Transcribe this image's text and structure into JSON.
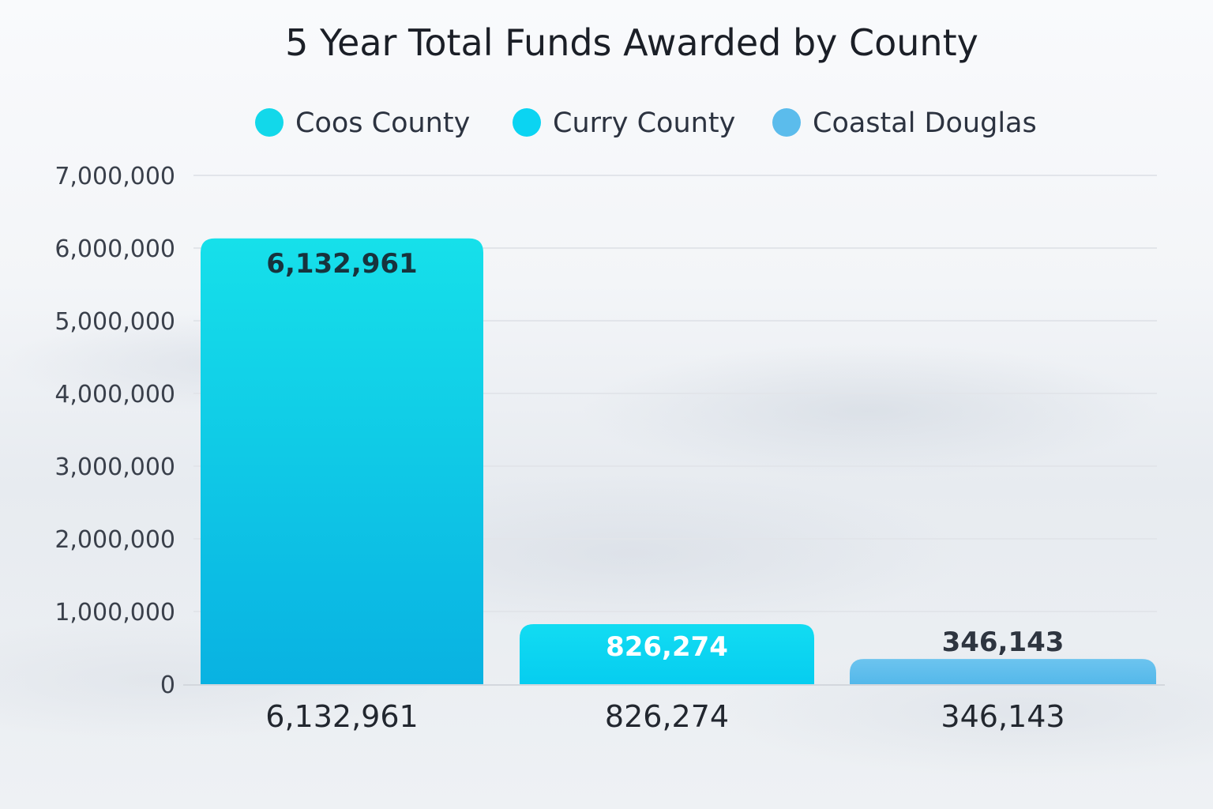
{
  "chart_data": {
    "type": "bar",
    "title": "5 Year Total Funds Awarded by County",
    "xlabel": "",
    "ylabel": "",
    "categories": [
      "6,132,961",
      "826,274",
      "346,143"
    ],
    "series": [
      {
        "name": "Coos County",
        "color": "#12d8ea",
        "value": 6132961,
        "label": "6,132,961"
      },
      {
        "name": "Curry County",
        "color": "#0bd4f2",
        "value": 826274,
        "label": "826,274"
      },
      {
        "name": "Coastal Douglas",
        "color": "#5bbcec",
        "value": 346143,
        "label": "346,143"
      }
    ],
    "y_ticks": [
      "0",
      "1,000,000",
      "2,000,000",
      "3,000,000",
      "4,000,000",
      "5,000,000",
      "6,000,000",
      "7,000,000"
    ],
    "ylim": [
      0,
      7000000
    ],
    "grid": true,
    "legend_position": "top"
  }
}
